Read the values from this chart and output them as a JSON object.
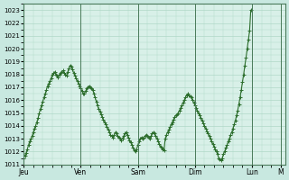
{
  "background_color": "#c8e8e0",
  "plot_bg_color": "#d8f0e8",
  "line_color": "#2d6e2d",
  "marker_color": "#2d6e2d",
  "grid_color": "#b0d8c8",
  "ylim": [
    1011,
    1023.5
  ],
  "yticks": [
    1011,
    1012,
    1013,
    1014,
    1015,
    1016,
    1017,
    1018,
    1019,
    1020,
    1021,
    1022,
    1023
  ],
  "day_labels": [
    "Jeu",
    "Ven",
    "Sam",
    "Dim",
    "Lun",
    "M"
  ],
  "day_positions": [
    0,
    48,
    96,
    144,
    192,
    216
  ],
  "xlim": [
    0,
    220
  ],
  "data_y": [
    1011.5,
    1011.7,
    1011.9,
    1012.2,
    1012.5,
    1012.8,
    1013.0,
    1013.2,
    1013.5,
    1013.8,
    1014.0,
    1014.3,
    1014.6,
    1015.0,
    1015.3,
    1015.6,
    1015.9,
    1016.2,
    1016.5,
    1016.8,
    1017.1,
    1017.3,
    1017.5,
    1017.7,
    1018.0,
    1018.1,
    1018.2,
    1018.0,
    1017.9,
    1017.8,
    1018.0,
    1018.1,
    1018.2,
    1018.3,
    1018.1,
    1018.0,
    1017.9,
    1018.2,
    1018.5,
    1018.7,
    1018.6,
    1018.4,
    1018.1,
    1017.9,
    1017.7,
    1017.5,
    1017.3,
    1017.1,
    1016.9,
    1016.7,
    1016.5,
    1016.5,
    1016.7,
    1016.9,
    1017.0,
    1017.1,
    1017.0,
    1016.9,
    1016.8,
    1016.5,
    1016.2,
    1015.9,
    1015.6,
    1015.3,
    1015.1,
    1014.9,
    1014.7,
    1014.5,
    1014.3,
    1014.1,
    1013.9,
    1013.7,
    1013.5,
    1013.3,
    1013.2,
    1013.1,
    1013.3,
    1013.5,
    1013.4,
    1013.2,
    1013.1,
    1013.0,
    1012.9,
    1013.0,
    1013.2,
    1013.4,
    1013.5,
    1013.3,
    1013.1,
    1012.9,
    1012.7,
    1012.5,
    1012.3,
    1012.1,
    1012.0,
    1012.2,
    1012.5,
    1012.8,
    1013.0,
    1013.1,
    1013.0,
    1013.1,
    1013.2,
    1013.3,
    1013.2,
    1013.1,
    1013.0,
    1013.2,
    1013.4,
    1013.5,
    1013.4,
    1013.2,
    1013.0,
    1012.8,
    1012.6,
    1012.4,
    1012.3,
    1012.2,
    1012.1,
    1013.0,
    1013.3,
    1013.5,
    1013.7,
    1013.9,
    1014.1,
    1014.3,
    1014.5,
    1014.7,
    1014.8,
    1014.9,
    1015.0,
    1015.2,
    1015.4,
    1015.6,
    1015.8,
    1016.0,
    1016.2,
    1016.4,
    1016.5,
    1016.4,
    1016.3,
    1016.2,
    1016.0,
    1015.8,
    1015.6,
    1015.4,
    1015.2,
    1015.0,
    1014.8,
    1014.6,
    1014.4,
    1014.2,
    1014.0,
    1013.8,
    1013.6,
    1013.4,
    1013.2,
    1013.0,
    1012.8,
    1012.6,
    1012.4,
    1012.2,
    1012.0,
    1011.8,
    1011.5,
    1011.4,
    1011.3,
    1011.5,
    1011.8,
    1012.0,
    1012.3,
    1012.5,
    1012.8,
    1013.0,
    1013.3,
    1013.5,
    1013.8,
    1014.1,
    1014.4,
    1014.8,
    1015.2,
    1015.7,
    1016.2,
    1016.8,
    1017.4,
    1018.0,
    1018.7,
    1019.3,
    1020.0,
    1020.7,
    1021.4,
    1023.0
  ]
}
